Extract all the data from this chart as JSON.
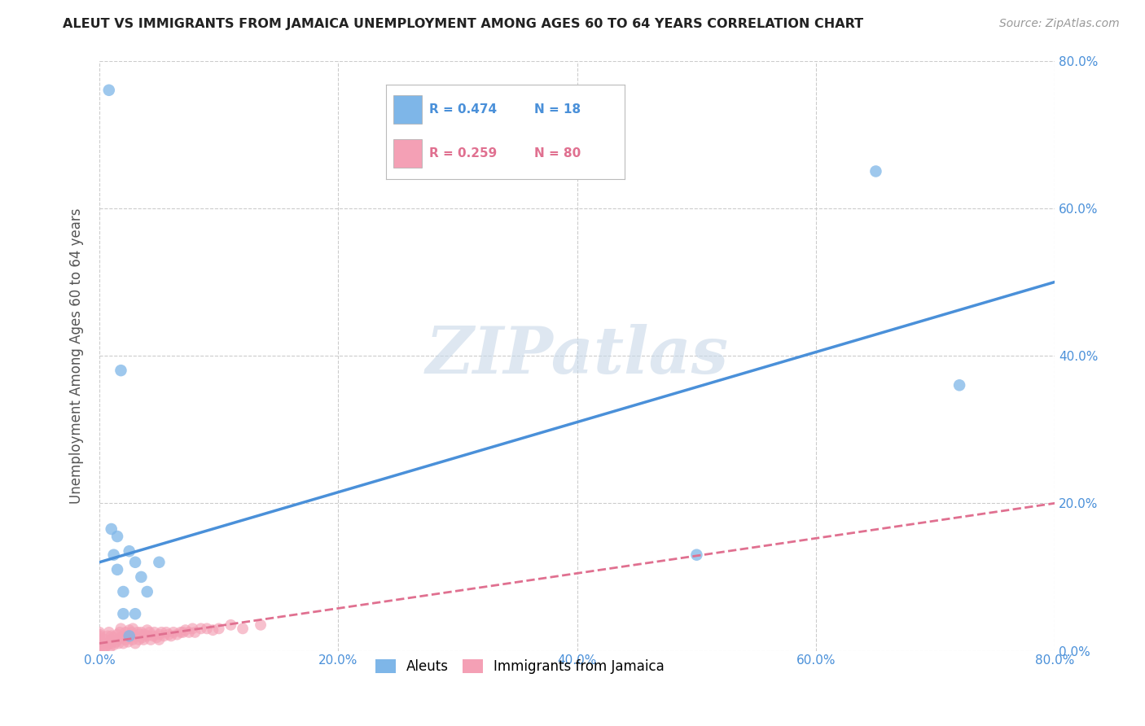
{
  "title": "ALEUT VS IMMIGRANTS FROM JAMAICA UNEMPLOYMENT AMONG AGES 60 TO 64 YEARS CORRELATION CHART",
  "source": "Source: ZipAtlas.com",
  "ylabel": "Unemployment Among Ages 60 to 64 years",
  "xlim": [
    0,
    0.8
  ],
  "ylim": [
    0,
    0.8
  ],
  "xticks": [
    0.0,
    0.2,
    0.4,
    0.6,
    0.8
  ],
  "yticks": [
    0.0,
    0.2,
    0.4,
    0.6,
    0.8
  ],
  "xticklabels": [
    "0.0%",
    "20.0%",
    "40.0%",
    "60.0%",
    "80.0%"
  ],
  "yticklabels_right": [
    "0.0%",
    "20.0%",
    "40.0%",
    "60.0%",
    "80.0%"
  ],
  "aleuts_color": "#7EB6E8",
  "jamaica_color": "#F4A0B5",
  "aleut_line_color": "#4A90D9",
  "jamaica_line_color": "#E07090",
  "watermark": "ZIPatlas",
  "watermark_color": "#C8D8E8",
  "background_color": "#FFFFFF",
  "aleut_line_x0": 0.0,
  "aleut_line_y0": 0.12,
  "aleut_line_x1": 0.8,
  "aleut_line_y1": 0.5,
  "jamaica_line_x0": 0.0,
  "jamaica_line_y0": 0.01,
  "jamaica_line_x1": 0.8,
  "jamaica_line_y1": 0.2,
  "aleuts_x": [
    0.008,
    0.01,
    0.012,
    0.015,
    0.015,
    0.018,
    0.02,
    0.02,
    0.025,
    0.025,
    0.03,
    0.03,
    0.035,
    0.04,
    0.05,
    0.5,
    0.65,
    0.72
  ],
  "aleuts_y": [
    0.76,
    0.165,
    0.13,
    0.155,
    0.11,
    0.38,
    0.08,
    0.05,
    0.135,
    0.02,
    0.12,
    0.05,
    0.1,
    0.08,
    0.12,
    0.13,
    0.65,
    0.36
  ],
  "jamaica_x": [
    0.0,
    0.0,
    0.0,
    0.0,
    0.0,
    0.0,
    0.0,
    0.0,
    0.0,
    0.0,
    0.003,
    0.003,
    0.005,
    0.005,
    0.007,
    0.007,
    0.007,
    0.008,
    0.009,
    0.01,
    0.01,
    0.01,
    0.012,
    0.012,
    0.014,
    0.015,
    0.015,
    0.016,
    0.017,
    0.018,
    0.018,
    0.02,
    0.02,
    0.022,
    0.022,
    0.024,
    0.025,
    0.025,
    0.026,
    0.027,
    0.028,
    0.028,
    0.03,
    0.03,
    0.032,
    0.033,
    0.034,
    0.035,
    0.036,
    0.037,
    0.038,
    0.04,
    0.04,
    0.042,
    0.043,
    0.045,
    0.046,
    0.048,
    0.05,
    0.05,
    0.052,
    0.054,
    0.056,
    0.058,
    0.06,
    0.062,
    0.065,
    0.068,
    0.07,
    0.072,
    0.075,
    0.078,
    0.08,
    0.085,
    0.09,
    0.095,
    0.1,
    0.11,
    0.12,
    0.135
  ],
  "jamaica_y": [
    0.0,
    0.005,
    0.008,
    0.01,
    0.012,
    0.015,
    0.018,
    0.02,
    0.022,
    0.025,
    0.0,
    0.01,
    0.005,
    0.015,
    0.008,
    0.012,
    0.02,
    0.025,
    0.005,
    0.01,
    0.015,
    0.02,
    0.008,
    0.018,
    0.012,
    0.015,
    0.022,
    0.01,
    0.025,
    0.018,
    0.03,
    0.01,
    0.02,
    0.015,
    0.025,
    0.012,
    0.018,
    0.028,
    0.022,
    0.025,
    0.015,
    0.03,
    0.01,
    0.02,
    0.025,
    0.015,
    0.022,
    0.025,
    0.018,
    0.015,
    0.022,
    0.02,
    0.028,
    0.025,
    0.015,
    0.02,
    0.025,
    0.018,
    0.022,
    0.015,
    0.025,
    0.02,
    0.025,
    0.022,
    0.02,
    0.025,
    0.022,
    0.025,
    0.025,
    0.028,
    0.025,
    0.03,
    0.025,
    0.03,
    0.03,
    0.028,
    0.03,
    0.035,
    0.03,
    0.035
  ]
}
